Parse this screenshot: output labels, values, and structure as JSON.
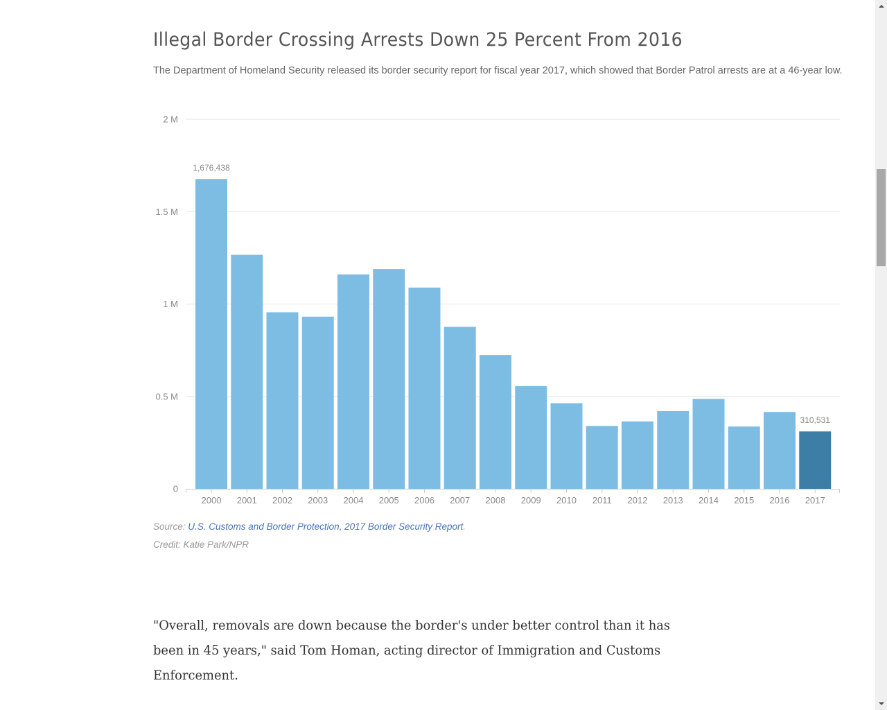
{
  "article": {
    "title": "Illegal Border Crossing Arrests Down 25 Percent From 2016",
    "subtitle": "The Department of Homeland Security released its border security report for fiscal year 2017, which showed that Border Patrol arrests are at a 46-year low.",
    "source_prefix": "Source: ",
    "source_link": "U.S. Customs and Border Protection, 2017 Border Security Report",
    "source_suffix": ".",
    "credit": "Credit: Katie Park/NPR",
    "quote": "\"Overall, removals are down because the border's under better control than it has been in 45 years,\" said Tom Homan, acting director of Immigration and Customs Enforcement."
  },
  "colors": {
    "bar": "#7dbde4",
    "highlight_bar": "#3d7ea6"
  },
  "chart_data": {
    "type": "bar",
    "title": "Illegal Border Crossing Arrests Down 25 Percent From 2016",
    "xlabel": "",
    "ylabel": "",
    "categories": [
      "2000",
      "2001",
      "2002",
      "2003",
      "2004",
      "2005",
      "2006",
      "2007",
      "2008",
      "2009",
      "2010",
      "2011",
      "2012",
      "2013",
      "2014",
      "2015",
      "2016",
      "2017"
    ],
    "values": [
      1676438,
      1266214,
      955310,
      931557,
      1160395,
      1189075,
      1089092,
      876704,
      723825,
      556041,
      463382,
      340252,
      364768,
      420789,
      486651,
      337117,
      415816,
      310531
    ],
    "ylim": [
      0,
      2000000
    ],
    "yticks": [
      0,
      500000,
      1000000,
      1500000,
      2000000
    ],
    "ytick_labels": [
      "0",
      "0.5 M",
      "1 M",
      "1.5 M",
      "2 M"
    ],
    "data_labels": [
      {
        "category": "2000",
        "label": "1,676,438"
      },
      {
        "category": "2017",
        "label": "310,531"
      }
    ],
    "highlight_category": "2017",
    "grid": true,
    "legend": "none"
  }
}
